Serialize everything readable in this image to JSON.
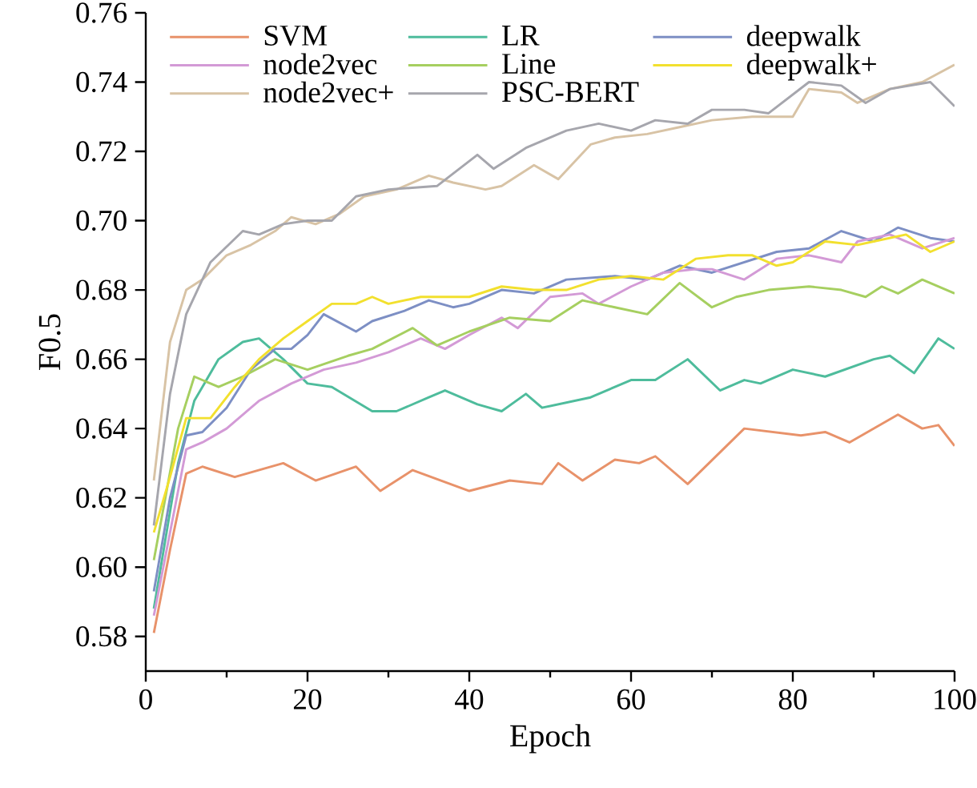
{
  "chart_data": {
    "type": "line",
    "xlabel": "Epoch",
    "ylabel": "F0.5",
    "xlim": [
      0,
      100
    ],
    "ylim": [
      0.57,
      0.76
    ],
    "xticks": [
      0,
      {
        "value": 10,
        "label": null
      },
      20,
      {
        "value": 30,
        "label": null
      },
      40,
      {
        "value": 50,
        "label": null
      },
      60,
      {
        "value": 70,
        "label": null
      },
      80,
      {
        "value": 90,
        "label": null
      },
      100
    ],
    "yticks": [
      {
        "value": 0.58,
        "label": "0.58"
      },
      {
        "value": 0.6,
        "label": "0.60"
      },
      {
        "value": 0.62,
        "label": "0.62"
      },
      {
        "value": 0.64,
        "label": "0.64"
      },
      {
        "value": 0.66,
        "label": "0.66"
      },
      {
        "value": 0.68,
        "label": "0.68"
      },
      {
        "value": 0.7,
        "label": "0.70"
      },
      {
        "value": 0.72,
        "label": "0.72"
      },
      {
        "value": 0.74,
        "label": "0.74"
      },
      {
        "value": 0.76,
        "label": "0.76"
      }
    ],
    "grid": false,
    "legend": "top left",
    "marker": "none",
    "line_style": "solid",
    "series": [
      {
        "name": "SVM",
        "color": "#e8926a",
        "x": [
          1,
          3,
          5,
          7,
          11,
          17,
          21,
          26,
          29,
          33,
          40,
          45,
          49,
          51,
          54,
          58,
          61,
          63,
          67,
          74,
          81,
          84,
          87,
          93,
          96,
          98,
          100
        ],
        "values": [
          0.581,
          0.605,
          0.627,
          0.629,
          0.626,
          0.63,
          0.625,
          0.629,
          0.622,
          0.628,
          0.622,
          0.625,
          0.624,
          0.63,
          0.625,
          0.631,
          0.63,
          0.632,
          0.624,
          0.64,
          0.638,
          0.639,
          0.636,
          0.644,
          0.64,
          0.641,
          0.635
        ]
      },
      {
        "name": "LR",
        "color": "#4ebc9c",
        "x": [
          1,
          4,
          6,
          9,
          12,
          14,
          17,
          20,
          23,
          28,
          31,
          35,
          37,
          41,
          44,
          47,
          49,
          55,
          60,
          63,
          67,
          71,
          74,
          76,
          80,
          84,
          90,
          92,
          95,
          98,
          100
        ],
        "values": [
          0.588,
          0.63,
          0.648,
          0.66,
          0.665,
          0.666,
          0.66,
          0.653,
          0.652,
          0.645,
          0.645,
          0.649,
          0.651,
          0.647,
          0.645,
          0.65,
          0.646,
          0.649,
          0.654,
          0.654,
          0.66,
          0.651,
          0.654,
          0.653,
          0.657,
          0.655,
          0.66,
          0.661,
          0.656,
          0.666,
          0.663
        ]
      },
      {
        "name": "deepwalk",
        "color": "#7d8fc4",
        "x": [
          1,
          3,
          5,
          7,
          10,
          13,
          16,
          18,
          20,
          22,
          26,
          28,
          32,
          35,
          38,
          40,
          44,
          48,
          52,
          58,
          62,
          66,
          70,
          74,
          78,
          82,
          86,
          90,
          93,
          97,
          100
        ],
        "values": [
          0.593,
          0.62,
          0.638,
          0.639,
          0.646,
          0.657,
          0.663,
          0.663,
          0.667,
          0.673,
          0.668,
          0.671,
          0.674,
          0.677,
          0.675,
          0.676,
          0.68,
          0.679,
          0.683,
          0.684,
          0.683,
          0.687,
          0.685,
          0.688,
          0.691,
          0.692,
          0.697,
          0.694,
          0.698,
          0.695,
          0.694
        ]
      },
      {
        "name": "node2vec",
        "color": "#d39ad6",
        "x": [
          1,
          3,
          5,
          7,
          10,
          14,
          18,
          22,
          26,
          30,
          34,
          37,
          40,
          44,
          46,
          50,
          54,
          56,
          60,
          64,
          68,
          70,
          74,
          78,
          82,
          86,
          88,
          92,
          96,
          100
        ],
        "values": [
          0.586,
          0.61,
          0.634,
          0.636,
          0.64,
          0.648,
          0.653,
          0.657,
          0.659,
          0.662,
          0.666,
          0.663,
          0.667,
          0.672,
          0.669,
          0.678,
          0.679,
          0.676,
          0.681,
          0.685,
          0.686,
          0.686,
          0.683,
          0.689,
          0.69,
          0.688,
          0.694,
          0.696,
          0.692,
          0.695
        ]
      },
      {
        "name": "Line",
        "color": "#a6cf60",
        "x": [
          1,
          4,
          6,
          9,
          12,
          16,
          20,
          25,
          28,
          33,
          36,
          40,
          45,
          50,
          54,
          58,
          62,
          66,
          70,
          73,
          77,
          82,
          86,
          89,
          91,
          93,
          96,
          100
        ],
        "values": [
          0.602,
          0.64,
          0.655,
          0.652,
          0.655,
          0.66,
          0.657,
          0.661,
          0.663,
          0.669,
          0.664,
          0.668,
          0.672,
          0.671,
          0.677,
          0.675,
          0.673,
          0.682,
          0.675,
          0.678,
          0.68,
          0.681,
          0.68,
          0.678,
          0.681,
          0.679,
          0.683,
          0.679
        ]
      },
      {
        "name": "deepwalk+",
        "color": "#f2e02e",
        "x": [
          1,
          3,
          5,
          8,
          11,
          14,
          17,
          20,
          23,
          26,
          28,
          30,
          34,
          40,
          44,
          48,
          52,
          56,
          60,
          64,
          68,
          72,
          75,
          78,
          80,
          84,
          88,
          90,
          94,
          97,
          100
        ],
        "values": [
          0.61,
          0.626,
          0.643,
          0.643,
          0.652,
          0.66,
          0.666,
          0.671,
          0.676,
          0.676,
          0.678,
          0.676,
          0.678,
          0.678,
          0.681,
          0.68,
          0.68,
          0.683,
          0.684,
          0.683,
          0.689,
          0.69,
          0.69,
          0.687,
          0.688,
          0.694,
          0.693,
          0.694,
          0.696,
          0.691,
          0.694
        ]
      },
      {
        "name": "node2vec+",
        "color": "#d8c3a5",
        "x": [
          1,
          3,
          5,
          7,
          10,
          13,
          16,
          18,
          21,
          24,
          27,
          31,
          35,
          38,
          40,
          42,
          44,
          48,
          51,
          55,
          58,
          62,
          66,
          70,
          75,
          80,
          82,
          86,
          88,
          92,
          96,
          100
        ],
        "values": [
          0.625,
          0.665,
          0.68,
          0.683,
          0.69,
          0.693,
          0.697,
          0.701,
          0.699,
          0.702,
          0.707,
          0.709,
          0.713,
          0.711,
          0.71,
          0.709,
          0.71,
          0.716,
          0.712,
          0.722,
          0.724,
          0.725,
          0.727,
          0.729,
          0.73,
          0.73,
          0.738,
          0.737,
          0.734,
          0.738,
          0.74,
          0.745
        ]
      },
      {
        "name": "PSC-BERT",
        "color": "#a6a6ad",
        "x": [
          1,
          3,
          5,
          8,
          12,
          14,
          17,
          20,
          23,
          26,
          30,
          36,
          41,
          43,
          47,
          52,
          56,
          60,
          63,
          67,
          70,
          74,
          77,
          82,
          86,
          89,
          92,
          97,
          100
        ],
        "values": [
          0.612,
          0.65,
          0.673,
          0.688,
          0.697,
          0.696,
          0.699,
          0.7,
          0.7,
          0.707,
          0.709,
          0.71,
          0.719,
          0.715,
          0.721,
          0.726,
          0.728,
          0.726,
          0.729,
          0.728,
          0.732,
          0.732,
          0.731,
          0.74,
          0.739,
          0.734,
          0.738,
          0.74,
          0.733
        ]
      }
    ]
  }
}
